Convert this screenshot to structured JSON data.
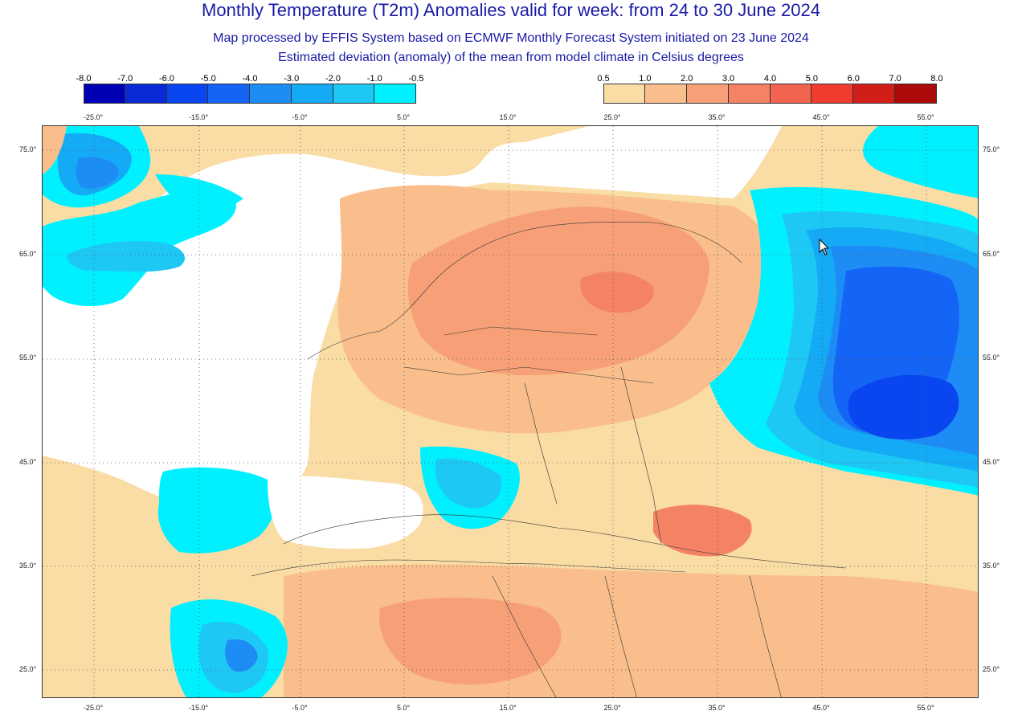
{
  "header": {
    "title": "Monthly Temperature (T2m) Anomalies valid for week: from 24 to 30 June 2024",
    "subtitle": "Map processed by EFFIS System based on ECMWF Monthly Forecast System initiated on 23 June 2024",
    "description": "Estimated deviation (anomaly) of the mean from model climate in Celsius degrees"
  },
  "legend": {
    "cold": {
      "labels": [
        "-8.0",
        "-7.0",
        "-6.0",
        "-5.0",
        "-4.0",
        "-3.0",
        "-2.0",
        "-1.0",
        "-0.5"
      ],
      "colors": [
        "#0000b4",
        "#0a2ad8",
        "#0a46f0",
        "#1464f5",
        "#1e8cf5",
        "#14aaf5",
        "#1ec8f5",
        "#00f0ff"
      ]
    },
    "warm": {
      "labels": [
        "0.5",
        "1.0",
        "2.0",
        "3.0",
        "4.0",
        "5.0",
        "6.0",
        "7.0",
        "8.0"
      ],
      "colors": [
        "#fadca5",
        "#f9be8c",
        "#f7a078",
        "#f48264",
        "#f26450",
        "#f03c2d",
        "#d21e19",
        "#aa0a0a"
      ]
    }
  },
  "axes": {
    "longitudes": [
      "-25.0°",
      "-15.0°",
      "-5.0°",
      "5.0°",
      "15.0°",
      "25.0°",
      "35.0°",
      "45.0°",
      "55.0°"
    ],
    "latitudes": [
      "75.0°",
      "65.0°",
      "55.0°",
      "45.0°",
      "35.0°",
      "25.0°"
    ]
  },
  "map_colors": {
    "ocean": "#ffffff",
    "anomaly_0_5": "#fadca5",
    "anomaly_1": "#f9be8c",
    "anomaly_2": "#f7a078",
    "anomaly_3": "#f48264",
    "anomaly_neg_0_5": "#00f0ff",
    "anomaly_neg_1": "#1ec8f5",
    "anomaly_neg_2": "#14aaf5",
    "anomaly_neg_3": "#1e8cf5",
    "anomaly_neg_4": "#1464f5",
    "anomaly_neg_5": "#0a46f0",
    "border": "#333333"
  }
}
